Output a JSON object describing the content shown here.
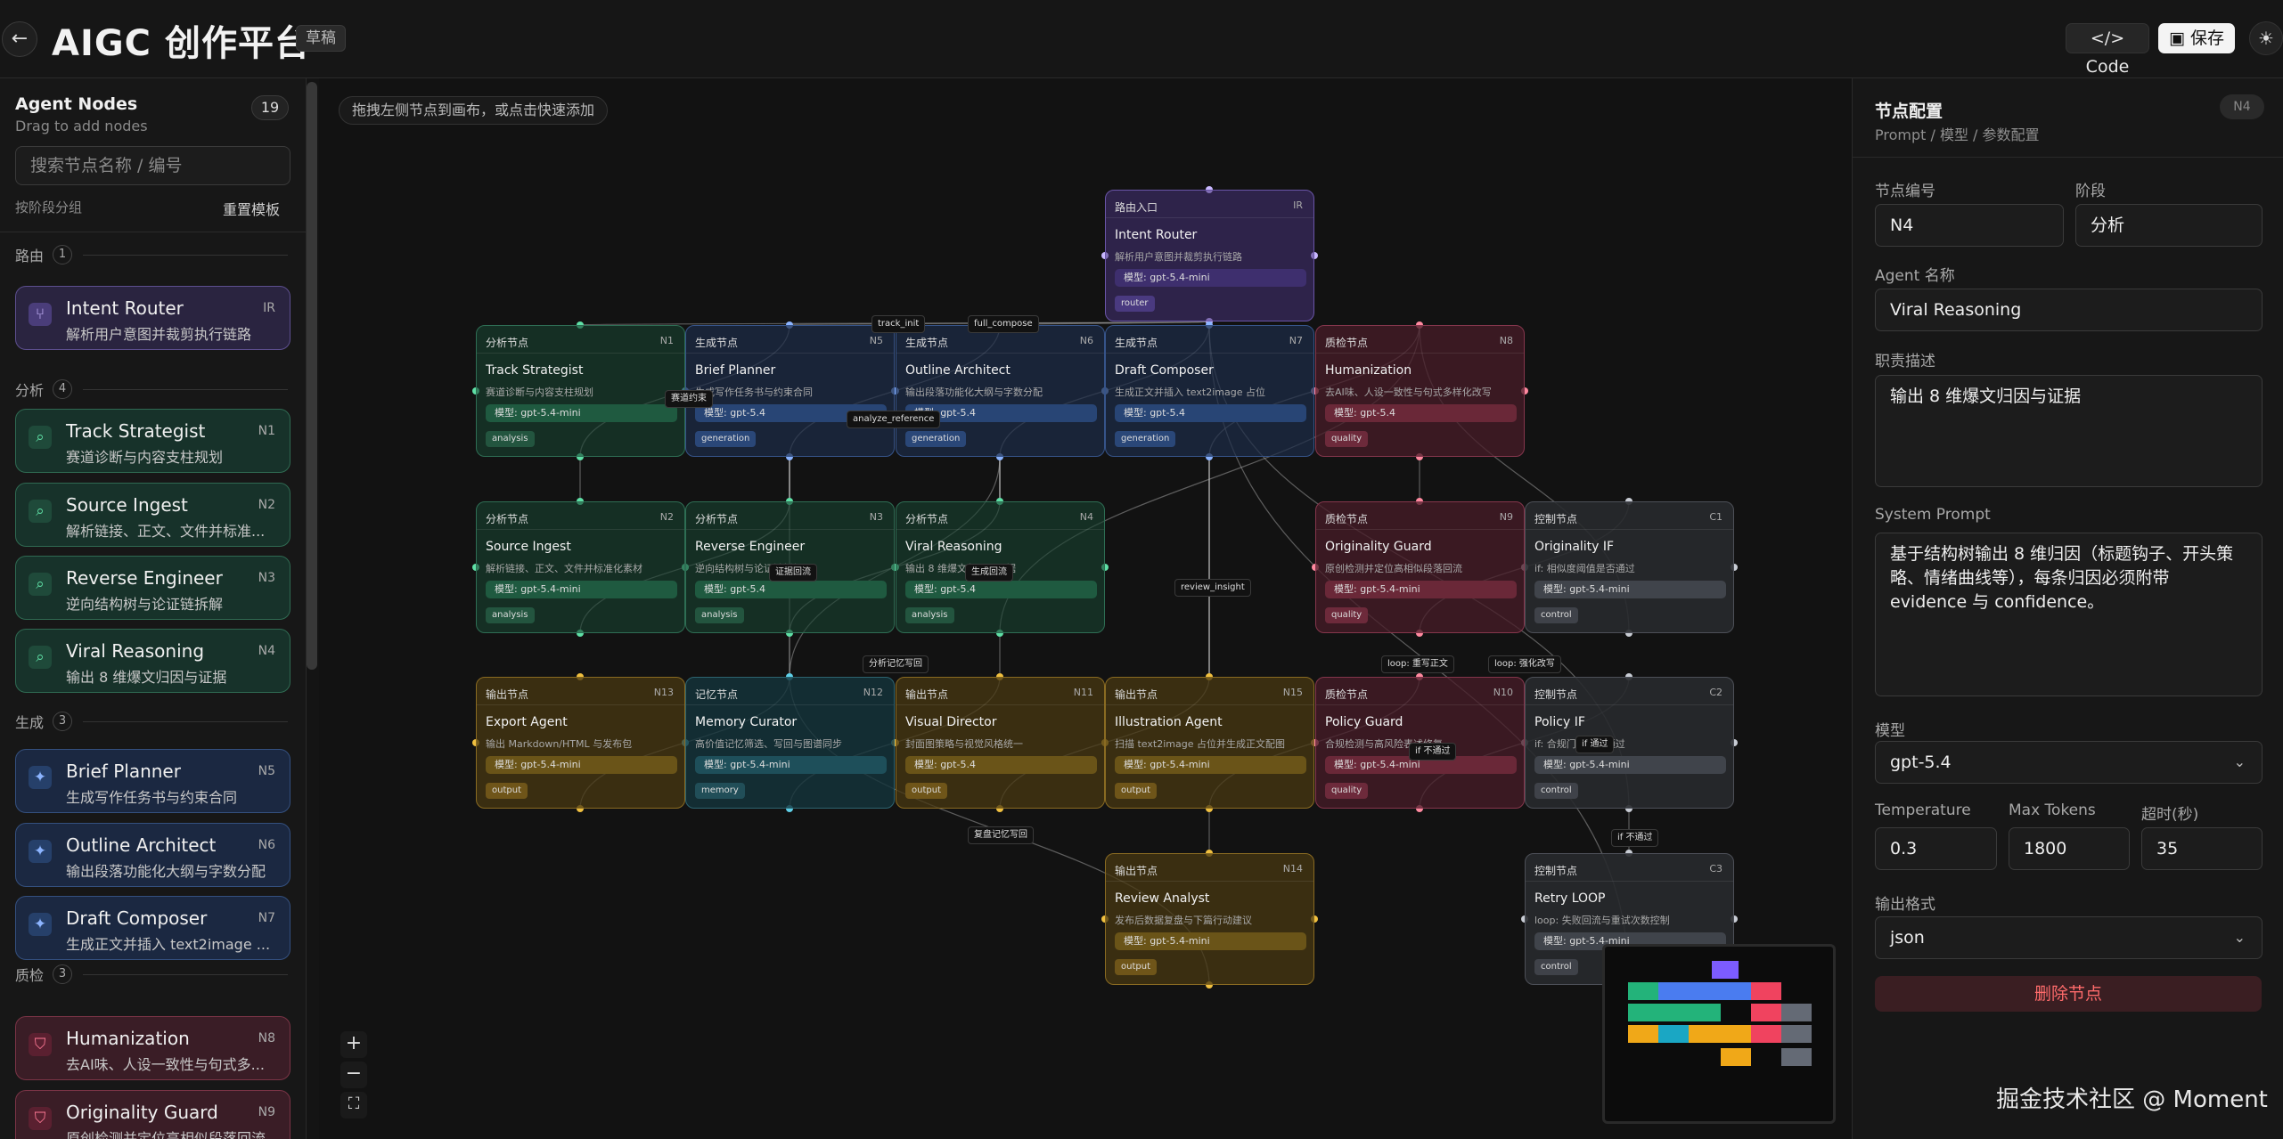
{
  "header": {
    "back_icon": "←",
    "title": "AIGC 创作平台",
    "badge": "草稿",
    "code_label": "Code",
    "save_label": "保存",
    "theme_icon": "☀"
  },
  "left": {
    "title": "Agent Nodes",
    "subtitle": "Drag to add nodes",
    "count": "19",
    "search_placeholder": "搜索节点名称 / 编号",
    "group_label": "按阶段分组",
    "reset_label": "重置模板",
    "sections": [
      {
        "label": "路由",
        "count": "1"
      },
      {
        "label": "分析",
        "count": "4"
      },
      {
        "label": "生成",
        "count": "3"
      },
      {
        "label": "质检",
        "count": "3"
      }
    ],
    "cards": [
      {
        "name": "Intent Router",
        "desc": "解析用户意图并裁剪执行链路",
        "code": "IR",
        "kind": "router",
        "icon": "⑂"
      },
      {
        "name": "Track Strategist",
        "desc": "赛道诊断与内容支柱规划",
        "code": "N1",
        "kind": "analysis",
        "icon": "⌕"
      },
      {
        "name": "Source Ingest",
        "desc": "解析链接、正文、文件并标准...",
        "code": "N2",
        "kind": "analysis",
        "icon": "⌕"
      },
      {
        "name": "Reverse Engineer",
        "desc": "逆向结构树与论证链拆解",
        "code": "N3",
        "kind": "analysis",
        "icon": "⌕"
      },
      {
        "name": "Viral Reasoning",
        "desc": "输出 8 维爆文归因与证据",
        "code": "N4",
        "kind": "analysis",
        "icon": "⌕"
      },
      {
        "name": "Brief Planner",
        "desc": "生成写作任务书与约束合同",
        "code": "N5",
        "kind": "gen",
        "icon": "✦"
      },
      {
        "name": "Outline Architect",
        "desc": "输出段落功能化大纲与字数分配",
        "code": "N6",
        "kind": "gen",
        "icon": "✦"
      },
      {
        "name": "Draft Composer",
        "desc": "生成正文并插入 text2image ...",
        "code": "N7",
        "kind": "gen",
        "icon": "✦"
      },
      {
        "name": "Humanization",
        "desc": "去AI味、人设一致性与句式多...",
        "code": "N8",
        "kind": "qual",
        "icon": "⛉"
      },
      {
        "name": "Originality Guard",
        "desc": "原创检测并定位高相似段落回流",
        "code": "N9",
        "kind": "qual",
        "icon": "⛉"
      }
    ]
  },
  "canvas": {
    "hint": "拖拽左侧节点到画布，或点击快速添加",
    "zoom_in": "+",
    "zoom_out": "−",
    "fit": "⛶",
    "nodes": [
      {
        "stage": "路由入口",
        "id": "IR",
        "name": "Intent Router",
        "desc": "解析用户意图并裁剪执行链路",
        "model": "模型: gpt-5.4-mini",
        "tag": "router",
        "type": "router"
      },
      {
        "stage": "分析节点",
        "id": "N1",
        "name": "Track Strategist",
        "desc": "赛道诊断与内容支柱规划",
        "model": "模型: gpt-5.4-mini",
        "tag": "analysis",
        "type": "analysis"
      },
      {
        "stage": "生成节点",
        "id": "N5",
        "name": "Brief Planner",
        "desc": "生成写作任务书与约束合同",
        "model": "模型: gpt-5.4",
        "tag": "generation",
        "type": "gen"
      },
      {
        "stage": "生成节点",
        "id": "N6",
        "name": "Outline Architect",
        "desc": "输出段落功能化大纲与字数分配",
        "model": "模型: gpt-5.4",
        "tag": "generation",
        "type": "gen"
      },
      {
        "stage": "生成节点",
        "id": "N7",
        "name": "Draft Composer",
        "desc": "生成正文并插入 text2image 占位",
        "model": "模型: gpt-5.4",
        "tag": "generation",
        "type": "gen"
      },
      {
        "stage": "质检节点",
        "id": "N8",
        "name": "Humanization",
        "desc": "去AI味、人设一致性与句式多样化改写",
        "model": "模型: gpt-5.4",
        "tag": "quality",
        "type": "quality"
      },
      {
        "stage": "分析节点",
        "id": "N2",
        "name": "Source Ingest",
        "desc": "解析链接、正文、文件并标准化素材",
        "model": "模型: gpt-5.4-mini",
        "tag": "analysis",
        "type": "analysis"
      },
      {
        "stage": "分析节点",
        "id": "N3",
        "name": "Reverse Engineer",
        "desc": "逆向结构树与论证链拆解",
        "model": "模型: gpt-5.4",
        "tag": "analysis",
        "type": "analysis"
      },
      {
        "stage": "分析节点",
        "id": "N4",
        "name": "Viral Reasoning",
        "desc": "输出 8 维爆文归因与证据",
        "model": "模型: gpt-5.4",
        "tag": "analysis",
        "type": "analysis"
      },
      {
        "stage": "质检节点",
        "id": "N9",
        "name": "Originality Guard",
        "desc": "原创检测并定位高相似段落回流",
        "model": "模型: gpt-5.4-mini",
        "tag": "quality",
        "type": "quality"
      },
      {
        "stage": "控制节点",
        "id": "C1",
        "name": "Originality IF",
        "desc": "if: 相似度阈值是否通过",
        "model": "模型: gpt-5.4-mini",
        "tag": "control",
        "type": "control"
      },
      {
        "stage": "输出节点",
        "id": "N13",
        "name": "Export Agent",
        "desc": "输出 Markdown/HTML 与发布包",
        "model": "模型: gpt-5.4-mini",
        "tag": "output",
        "type": "output"
      },
      {
        "stage": "记忆节点",
        "id": "N12",
        "name": "Memory Curator",
        "desc": "高价值记忆筛选、写回与图谱同步",
        "model": "模型: gpt-5.4-mini",
        "tag": "memory",
        "type": "memory"
      },
      {
        "stage": "输出节点",
        "id": "N11",
        "name": "Visual Director",
        "desc": "封面图策略与视觉风格统一",
        "model": "模型: gpt-5.4",
        "tag": "output",
        "type": "output"
      },
      {
        "stage": "输出节点",
        "id": "N15",
        "name": "Illustration Agent",
        "desc": "扫描 text2image 占位并生成正文配图",
        "model": "模型: gpt-5.4-mini",
        "tag": "output",
        "type": "output"
      },
      {
        "stage": "质检节点",
        "id": "N10",
        "name": "Policy Guard",
        "desc": "合规检测与高风险表述修复",
        "model": "模型: gpt-5.4-mini",
        "tag": "quality",
        "type": "quality"
      },
      {
        "stage": "控制节点",
        "id": "C2",
        "name": "Policy IF",
        "desc": "if: 合规门禁是否通过",
        "model": "模型: gpt-5.4-mini",
        "tag": "control",
        "type": "control"
      },
      {
        "stage": "输出节点",
        "id": "N14",
        "name": "Review Analyst",
        "desc": "发布后数据复盘与下篇行动建议",
        "model": "模型: gpt-5.4-mini",
        "tag": "output",
        "type": "output"
      },
      {
        "stage": "控制节点",
        "id": "C3",
        "name": "Retry LOOP",
        "desc": "loop: 失败回流与重试次数控制",
        "model": "模型: gpt-5.4-mini",
        "tag": "control",
        "type": "control"
      }
    ],
    "edge_labels": [
      "track_init",
      "full_compose",
      "赛道约束",
      "analyze_reference",
      "review_insight",
      "证据回流",
      "生成回流",
      "分析记忆写回",
      "loop: 重写正文",
      "loop: 强化改写",
      "if 通过",
      "if 不通过",
      "if 不通过",
      "复盘记忆写回"
    ]
  },
  "right": {
    "title": "节点配置",
    "badge": "N4",
    "path": "Prompt / 模型 / 参数配置",
    "node_id_label": "节点编号",
    "node_id": "N4",
    "stage_label": "阶段",
    "stage": "分析",
    "agent_name_label": "Agent 名称",
    "agent_name": "Viral Reasoning",
    "duty_label": "职责描述",
    "duty": "输出 8 维爆文归因与证据",
    "prompt_label": "System Prompt",
    "prompt": "基于结构树输出 8 维归因（标题钩子、开头策略、情绪曲线等），每条归因必须附带 evidence 与 confidence。",
    "model_label": "模型",
    "model": "gpt-5.4",
    "temp_label": "Temperature",
    "temp": "0.3",
    "tokens_label": "Max Tokens",
    "tokens": "1800",
    "timeout_label": "超时(秒)",
    "timeout": "35",
    "format_label": "输出格式",
    "format": "json",
    "delete_label": "删除节点",
    "chevron": "⌄"
  },
  "watermark": "掘金技术社区 @ Moment"
}
